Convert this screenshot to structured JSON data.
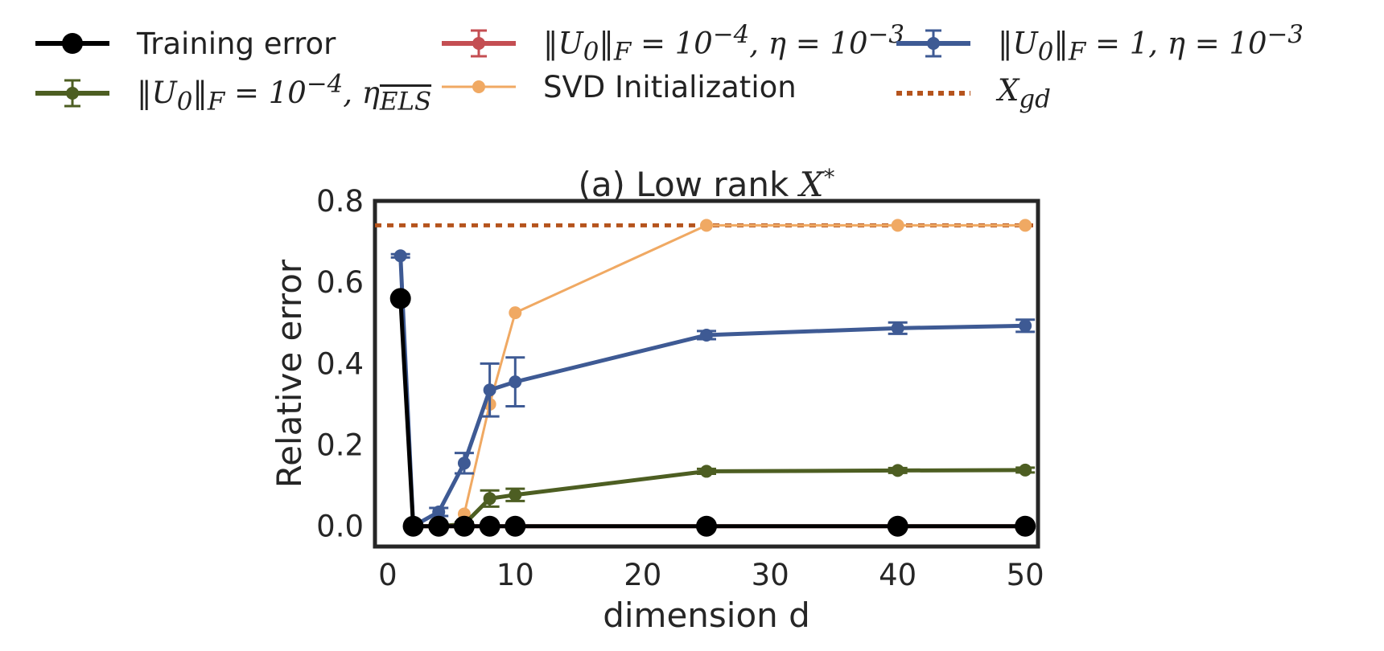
{
  "chart_data": {
    "type": "line",
    "title_prefix": "(a) Low rank ",
    "title_math": "X",
    "title_sup": "*",
    "xlabel": "dimension d",
    "ylabel": "Relative error",
    "xlim": [
      -1,
      51
    ],
    "ylim": [
      -0.05,
      0.8
    ],
    "xticks": [
      0,
      10,
      20,
      30,
      40,
      50
    ],
    "yticks": [
      0.0,
      0.2,
      0.4,
      0.6,
      0.8
    ],
    "xtick_labels": [
      "0",
      "10",
      "20",
      "30",
      "40",
      "50"
    ],
    "ytick_labels": [
      "0.0",
      "0.2",
      "0.4",
      "0.6",
      "0.8"
    ],
    "x": [
      1,
      2,
      4,
      6,
      8,
      10,
      25,
      40,
      50
    ],
    "series": [
      {
        "name": "Training error",
        "color": "#000000",
        "marker_size": "large",
        "values": [
          0.56,
          0.0,
          0.0,
          0.0,
          0.0,
          0.0,
          0.0,
          0.0,
          0.0
        ],
        "errors": null
      },
      {
        "name": "||U0||F = 10^-4, η = 10^-3",
        "color": "#c44e52",
        "x": [
          2,
          4,
          6,
          8,
          10,
          25,
          40,
          50
        ],
        "values": [
          0.0,
          0.0,
          0.0,
          0.0,
          0.0,
          0.0,
          0.0,
          0.0
        ],
        "errors": [
          0,
          0,
          0,
          0,
          0,
          0,
          0,
          0
        ]
      },
      {
        "name": "SVD Initialization",
        "color": "#f0a963",
        "x": [
          6,
          8,
          10,
          25,
          40,
          50
        ],
        "values": [
          0.03,
          0.3,
          0.525,
          0.74,
          0.74,
          0.74
        ],
        "errors": null
      },
      {
        "name": "||U0||F = 10^-4, η_ELS",
        "color": "#4d5e22",
        "x": [
          2,
          4,
          6,
          8,
          10,
          25,
          40,
          50
        ],
        "values": [
          0.0,
          0.0,
          0.005,
          0.068,
          0.077,
          0.135,
          0.137,
          0.138
        ],
        "errors": [
          0.003,
          0.004,
          0.005,
          0.02,
          0.015,
          0.006,
          0.006,
          0.006
        ]
      },
      {
        "name": "||U0||F = 1, η = 10^-3",
        "color": "#3e5a94",
        "x": [
          1,
          2,
          4,
          6,
          8,
          10,
          25,
          40,
          50
        ],
        "values": [
          0.665,
          0.0,
          0.035,
          0.155,
          0.335,
          0.355,
          0.47,
          0.487,
          0.493
        ],
        "errors": [
          0.004,
          0.004,
          0.01,
          0.025,
          0.065,
          0.06,
          0.01,
          0.014,
          0.015
        ]
      }
    ],
    "reference_line": {
      "name": "X_gd",
      "color": "#b5541d",
      "y": 0.74
    }
  },
  "legend": {
    "training_error": "Training error",
    "els_label": "||U0||F = 10^-4, η_ELS",
    "red_label": "||U0||F = 10^-4, η = 10^-3",
    "svd_label": "SVD Initialization",
    "blue_label": "||U0||F = 1, η = 10^-3",
    "xgd_label": "X_gd"
  }
}
